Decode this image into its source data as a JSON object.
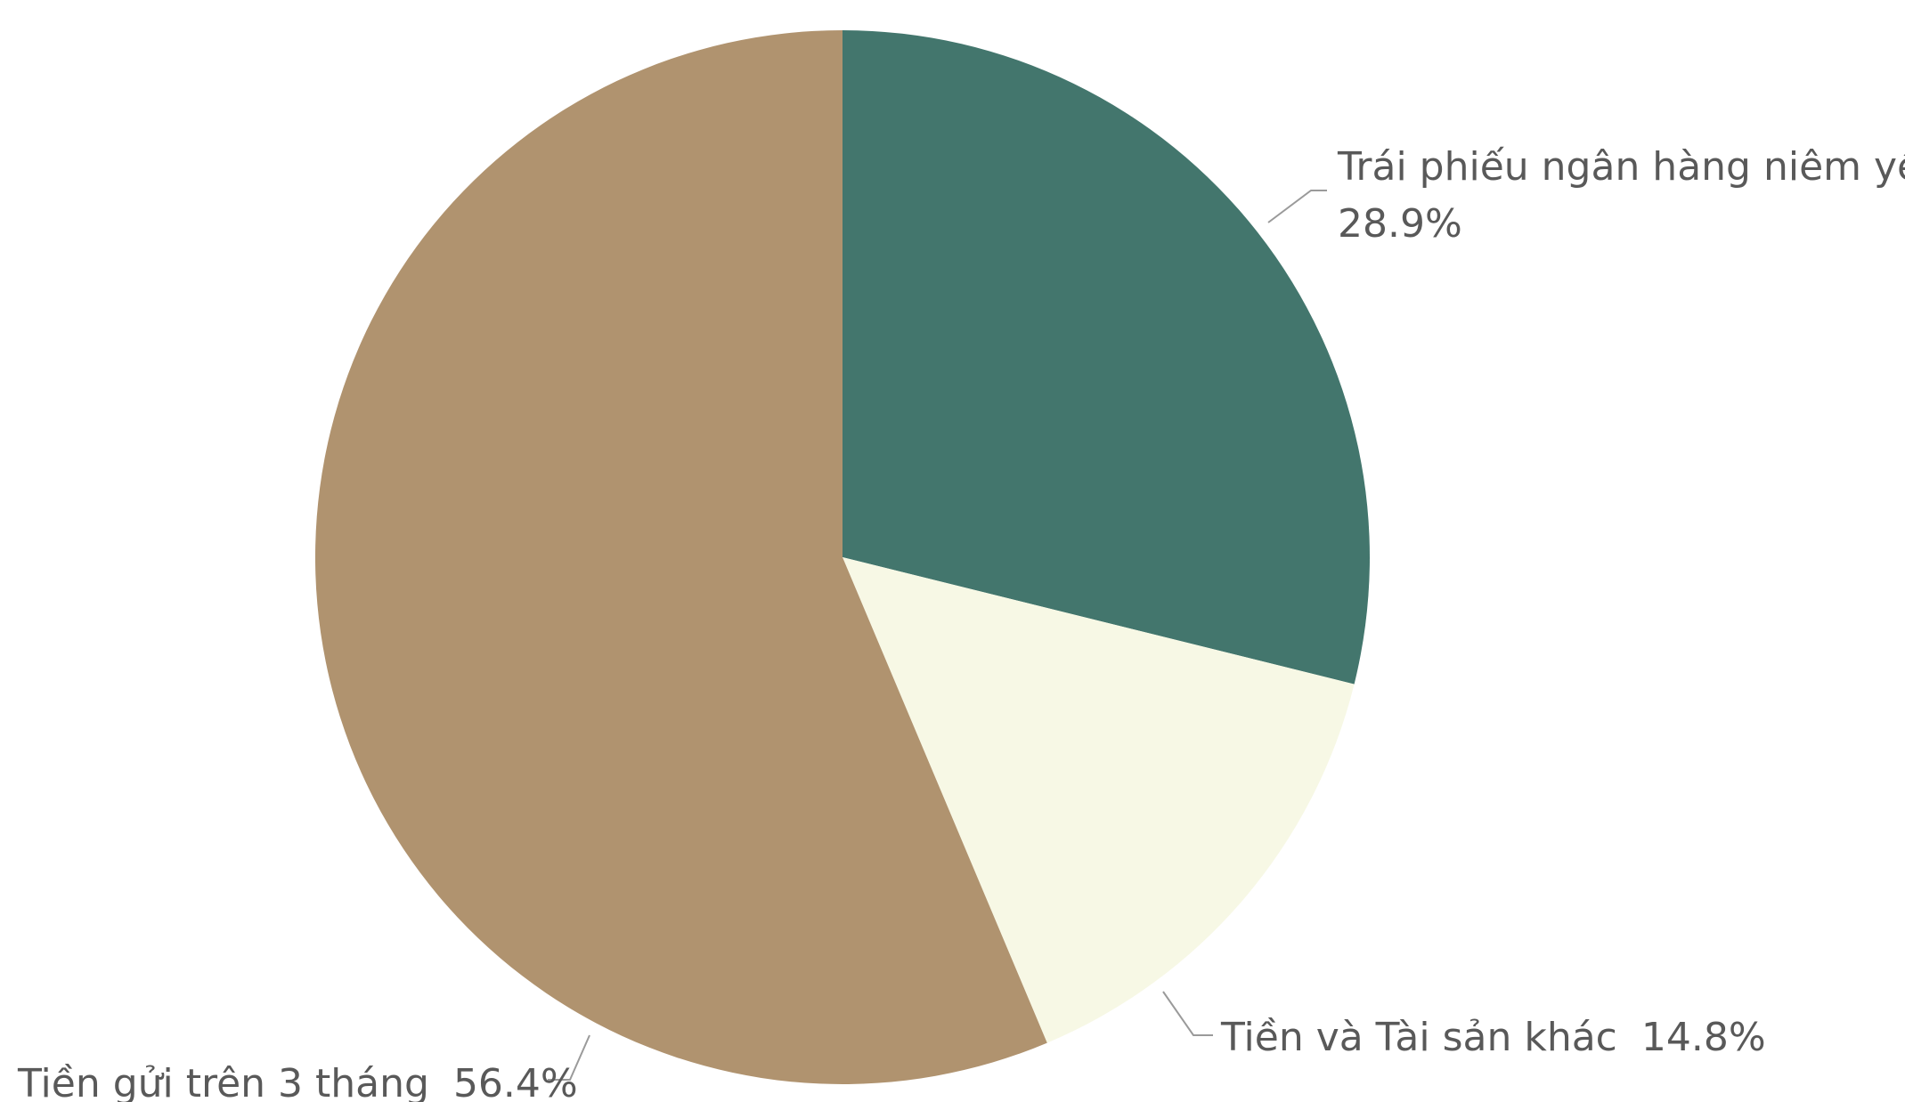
{
  "chart_data": {
    "type": "pie",
    "title": "",
    "start_angle_deg": 0,
    "direction": "clockwise",
    "slices": [
      {
        "label": "Trái phiếu ngân hàng niêm yết",
        "value": 28.9,
        "value_label": "28.9%",
        "color": "#43766d"
      },
      {
        "label": "Tiền và Tài sản khác",
        "value": 14.8,
        "value_label": "14.8%",
        "color": "#f7f8e5"
      },
      {
        "label": "Tiền gửi trên 3 tháng",
        "value": 56.4,
        "value_label": "56.4%",
        "color": "#b0936f"
      }
    ],
    "legend": "none",
    "data_labels": "outside-with-leader-lines"
  }
}
